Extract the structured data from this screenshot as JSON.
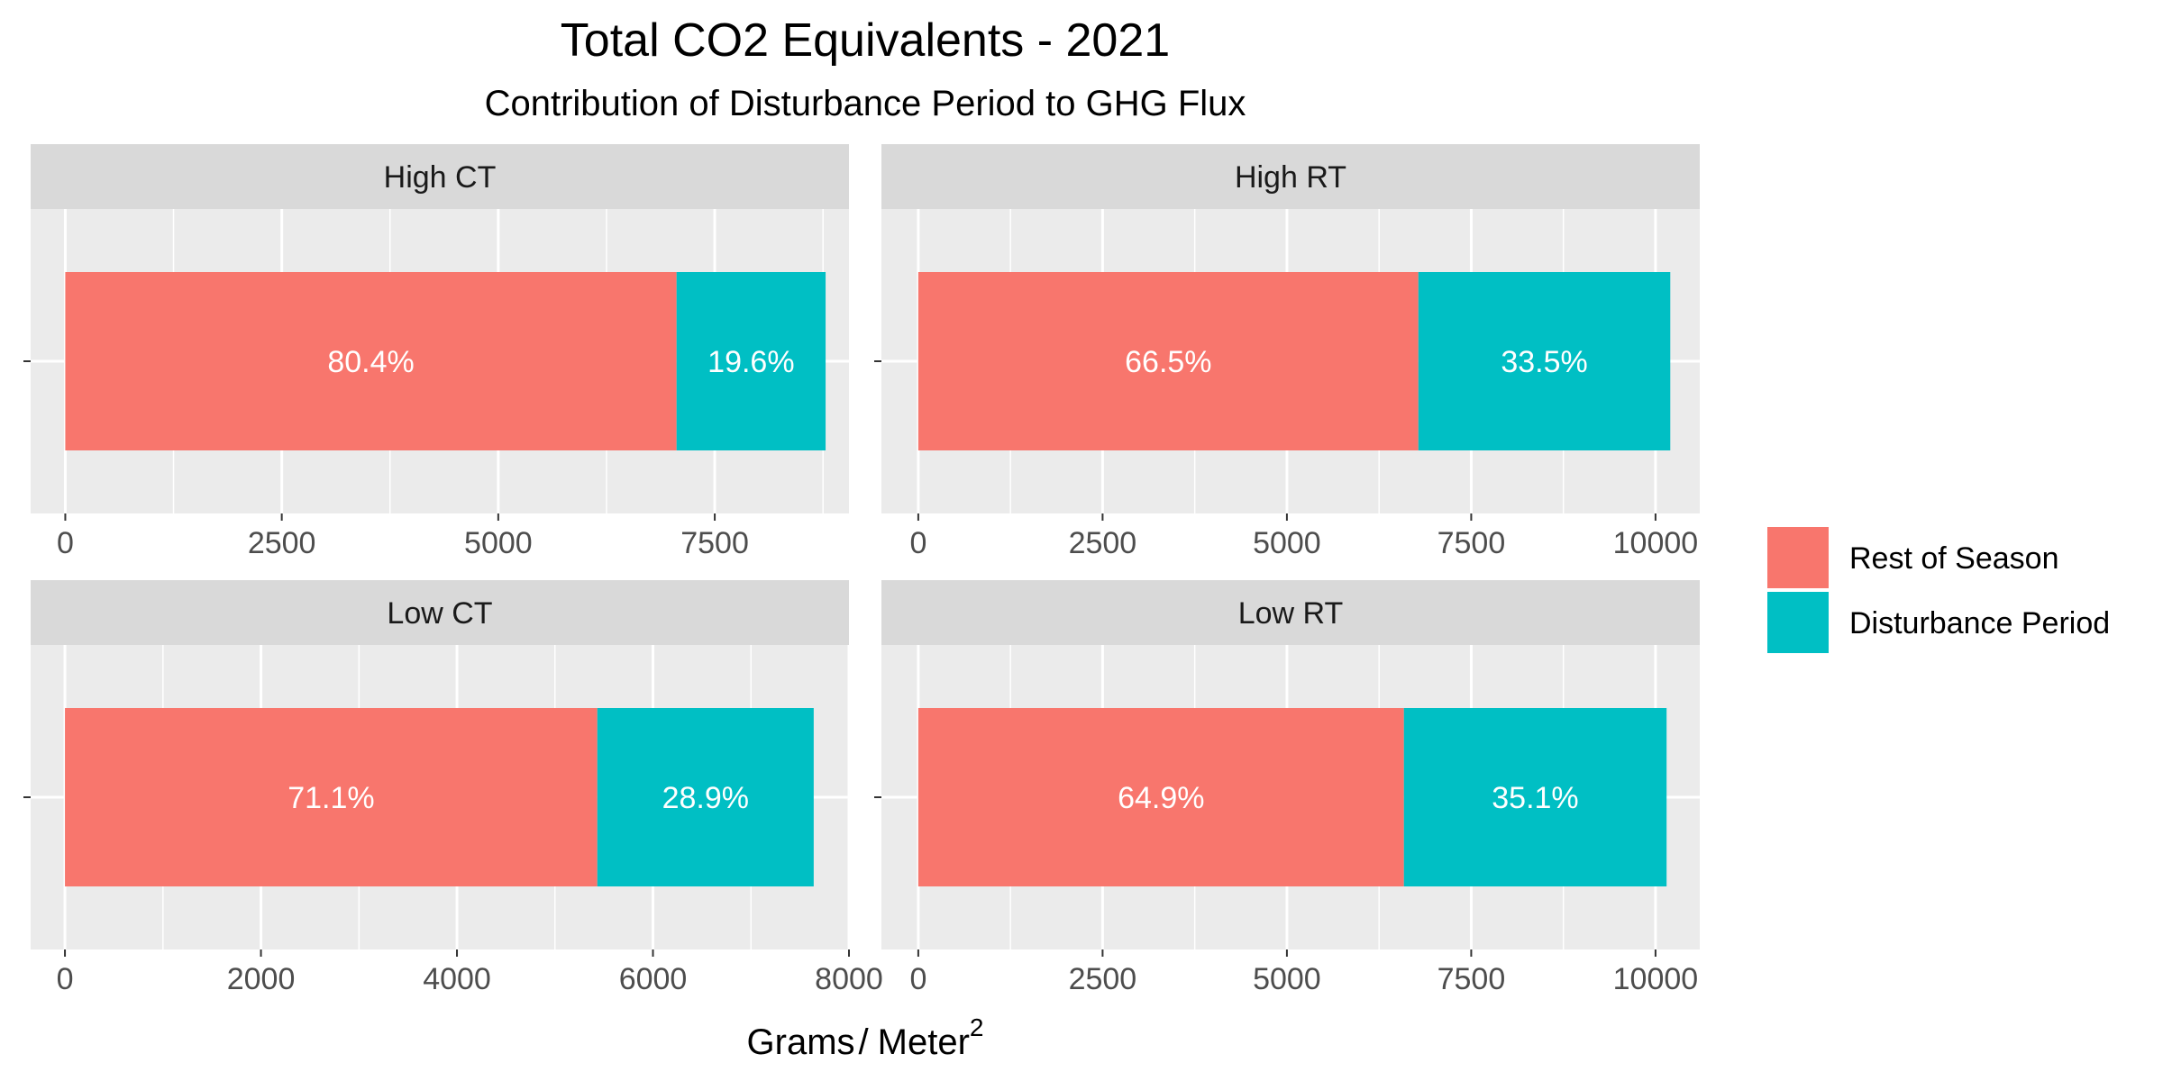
{
  "chart_data": {
    "type": "bar",
    "orientation": "horizontal",
    "stacked": true,
    "title": "Total CO2 Equivalents - 2021",
    "subtitle": "Contribution of Disturbance Period to GHG Flux",
    "xlabel_main": "Grams",
    "xlabel_sep": "/",
    "xlabel_unit": "Meter",
    "xlabel_exp": "2",
    "legend": {
      "position": "right",
      "entries": [
        {
          "key": "rest",
          "label": "Rest of Season",
          "color": "#F8766D"
        },
        {
          "key": "dist",
          "label": "Disturbance Period",
          "color": "#00BFC4"
        }
      ]
    },
    "colors": {
      "rest": "#F8766D",
      "disturbance": "#00BFC4",
      "panel_background": "#EBEBEB",
      "strip_background": "#D9D9D9",
      "grid": "#FFFFFF"
    },
    "panels": [
      {
        "name": "High CT",
        "xlim": [
          -400,
          9050
        ],
        "ticks": [
          "0",
          "2500",
          "5000",
          "7500"
        ],
        "tick_values": [
          0,
          2500,
          5000,
          7500
        ],
        "total": 8780,
        "segments": [
          {
            "series": "Rest of Season",
            "value": 7059,
            "label": "80.4%"
          },
          {
            "series": "Disturbance Period",
            "value": 1721,
            "label": "19.6%"
          }
        ]
      },
      {
        "name": "High RT",
        "xlim": [
          -500,
          10600
        ],
        "ticks": [
          "0",
          "2500",
          "5000",
          "7500",
          "10000"
        ],
        "tick_values": [
          0,
          2500,
          5000,
          7500,
          10000
        ],
        "total": 10200,
        "segments": [
          {
            "series": "Rest of Season",
            "value": 6783,
            "label": "66.5%"
          },
          {
            "series": "Disturbance Period",
            "value": 3417,
            "label": "33.5%"
          }
        ]
      },
      {
        "name": "Low CT",
        "xlim": [
          -350,
          8000
        ],
        "ticks": [
          "0",
          "2000",
          "4000",
          "6000",
          "8000"
        ],
        "tick_values": [
          0,
          2000,
          4000,
          6000,
          8000
        ],
        "total": 7640,
        "segments": [
          {
            "series": "Rest of Season",
            "value": 5432,
            "label": "71.1%"
          },
          {
            "series": "Disturbance Period",
            "value": 2208,
            "label": "28.9%"
          }
        ]
      },
      {
        "name": "Low RT",
        "xlim": [
          -500,
          10600
        ],
        "ticks": [
          "0",
          "2500",
          "5000",
          "7500",
          "10000"
        ],
        "tick_values": [
          0,
          2500,
          5000,
          7500,
          10000
        ],
        "total": 10150,
        "segments": [
          {
            "series": "Rest of Season",
            "value": 6587,
            "label": "64.9%"
          },
          {
            "series": "Disturbance Period",
            "value": 3563,
            "label": "35.1%"
          }
        ]
      }
    ]
  }
}
